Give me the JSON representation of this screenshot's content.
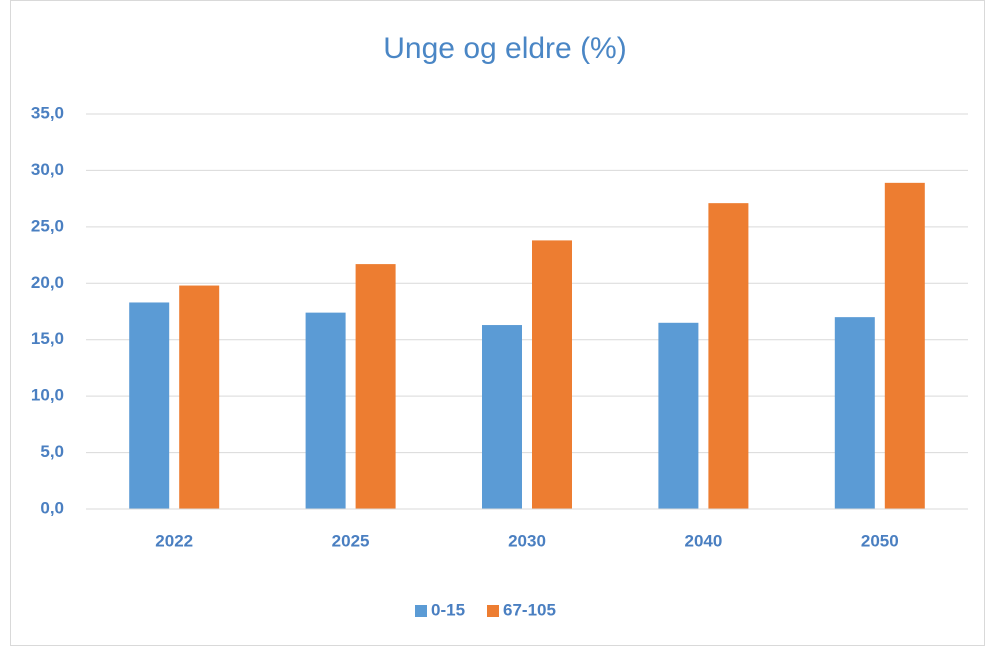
{
  "chart_data": {
    "type": "bar",
    "title": "Unge og eldre (%)",
    "categories": [
      "2022",
      "2025",
      "2030",
      "2040",
      "2050"
    ],
    "series": [
      {
        "name": "0-15",
        "color": "#5b9bd5",
        "values": [
          18.3,
          17.4,
          16.3,
          16.5,
          17.0
        ]
      },
      {
        "name": "67-105",
        "color": "#ed7d31",
        "values": [
          19.8,
          21.7,
          23.8,
          27.1,
          28.9
        ]
      }
    ],
    "ylim": [
      0,
      35
    ],
    "yticks": [
      {
        "value": 0,
        "label": "0,0"
      },
      {
        "value": 5,
        "label": "5,0"
      },
      {
        "value": 10,
        "label": "10,0"
      },
      {
        "value": 15,
        "label": "15,0"
      },
      {
        "value": 20,
        "label": "20,0"
      },
      {
        "value": 25,
        "label": "25,0"
      },
      {
        "value": 30,
        "label": "30,0"
      },
      {
        "value": 35,
        "label": "35,0"
      }
    ],
    "grid": true,
    "legend": "bottom"
  }
}
